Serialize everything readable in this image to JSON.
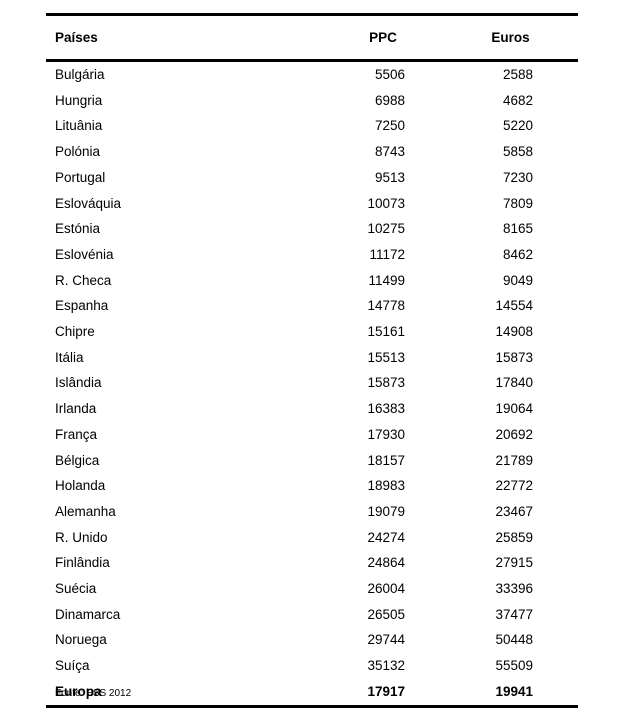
{
  "document": {
    "table": {
      "headers": [
        "Países",
        "PPC",
        "Euros"
      ],
      "rows": [
        [
          "Bulgária",
          "5506",
          "2588"
        ],
        [
          "Hungria",
          "6988",
          "4682"
        ],
        [
          "Lituânia",
          "7250",
          "5220"
        ],
        [
          "Polónia",
          "8743",
          "5858"
        ],
        [
          "Portugal",
          "9513",
          "7230"
        ],
        [
          "Eslováquia",
          "10073",
          "7809"
        ],
        [
          "Estónia",
          "10275",
          "8165"
        ],
        [
          "Eslovénia",
          "11172",
          "8462"
        ],
        [
          "R. Checa",
          "11499",
          "9049"
        ],
        [
          "Espanha",
          "14778",
          "14554"
        ],
        [
          "Chipre",
          "15161",
          "14908"
        ],
        [
          "Itália",
          "15513",
          "15873"
        ],
        [
          "Islândia",
          "15873",
          "17840"
        ],
        [
          "Irlanda",
          "16383",
          "19064"
        ],
        [
          "França",
          "17930",
          "20692"
        ],
        [
          "Bélgica",
          "18157",
          "21789"
        ],
        [
          "Holanda",
          "18983",
          "22772"
        ],
        [
          "Alemanha",
          "19079",
          "23467"
        ],
        [
          "R. Unido",
          "24274",
          "25859"
        ],
        [
          "Finlândia",
          "24864",
          "27915"
        ],
        [
          "Suécia",
          "26004",
          "33396"
        ],
        [
          "Dinamarca",
          "26505",
          "37477"
        ],
        [
          "Noruega",
          "29744",
          "50448"
        ],
        [
          "Suíça",
          "35132",
          "55509"
        ]
      ],
      "total_row": [
        "Europa",
        "17917",
        "19941"
      ],
      "source": "Fonte: ESS 2012"
    },
    "colors": {
      "text": "#000000",
      "rule": "#000000",
      "background": "#ffffff"
    }
  },
  "chart_data": {
    "type": "table",
    "title": "",
    "columns": [
      "Países",
      "PPC",
      "Euros"
    ],
    "rows": [
      {
        "pais": "Bulgária",
        "ppc": 5506,
        "euros": 2588
      },
      {
        "pais": "Hungria",
        "ppc": 6988,
        "euros": 4682
      },
      {
        "pais": "Lituânia",
        "ppc": 7250,
        "euros": 5220
      },
      {
        "pais": "Polónia",
        "ppc": 8743,
        "euros": 5858
      },
      {
        "pais": "Portugal",
        "ppc": 9513,
        "euros": 7230
      },
      {
        "pais": "Eslováquia",
        "ppc": 10073,
        "euros": 7809
      },
      {
        "pais": "Estónia",
        "ppc": 10275,
        "euros": 8165
      },
      {
        "pais": "Eslovénia",
        "ppc": 11172,
        "euros": 8462
      },
      {
        "pais": "R. Checa",
        "ppc": 11499,
        "euros": 9049
      },
      {
        "pais": "Espanha",
        "ppc": 14778,
        "euros": 14554
      },
      {
        "pais": "Chipre",
        "ppc": 15161,
        "euros": 14908
      },
      {
        "pais": "Itália",
        "ppc": 15513,
        "euros": 15873
      },
      {
        "pais": "Islândia",
        "ppc": 15873,
        "euros": 17840
      },
      {
        "pais": "Irlanda",
        "ppc": 16383,
        "euros": 19064
      },
      {
        "pais": "França",
        "ppc": 17930,
        "euros": 20692
      },
      {
        "pais": "Bélgica",
        "ppc": 18157,
        "euros": 21789
      },
      {
        "pais": "Holanda",
        "ppc": 18983,
        "euros": 22772
      },
      {
        "pais": "Alemanha",
        "ppc": 19079,
        "euros": 23467
      },
      {
        "pais": "R. Unido",
        "ppc": 24274,
        "euros": 25859
      },
      {
        "pais": "Finlândia",
        "ppc": 24864,
        "euros": 27915
      },
      {
        "pais": "Suécia",
        "ppc": 26004,
        "euros": 33396
      },
      {
        "pais": "Dinamarca",
        "ppc": 26505,
        "euros": 37477
      },
      {
        "pais": "Noruega",
        "ppc": 29744,
        "euros": 50448
      },
      {
        "pais": "Suíça",
        "ppc": 35132,
        "euros": 55509
      }
    ],
    "total_row": {
      "pais": "Europa",
      "ppc": 17917,
      "euros": 19941
    },
    "footnote": "Fonte: ESS 2012"
  }
}
